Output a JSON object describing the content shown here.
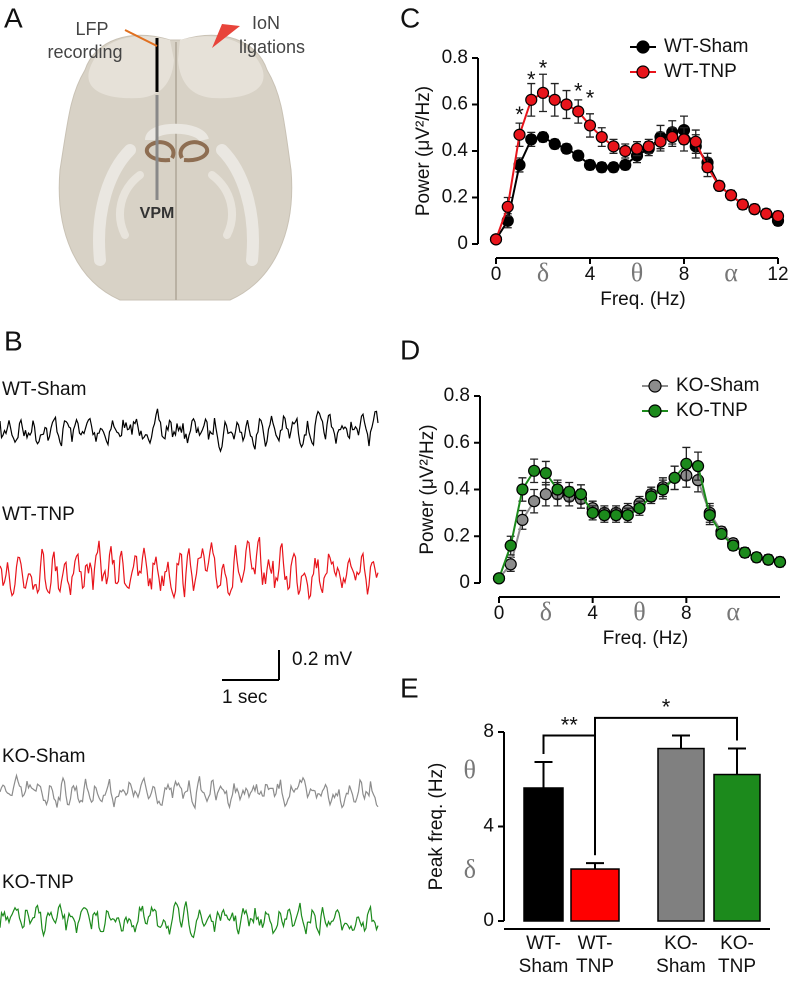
{
  "panel_labels": [
    "A",
    "B",
    "C",
    "D",
    "E"
  ],
  "panel_a": {
    "recording_label": [
      "LFP",
      "recording"
    ],
    "ligation_label": [
      "IoN",
      "ligations"
    ],
    "region_label": "VPM"
  },
  "panel_b": {
    "traces": [
      {
        "name": "WT-Sham",
        "color": "#000000"
      },
      {
        "name": "WT-TNP",
        "color": "#e8141b"
      },
      {
        "name": "KO-Sham",
        "color": "#8c8c8c"
      },
      {
        "name": "KO-TNP",
        "color": "#1c8a1c"
      }
    ],
    "scale_bar": {
      "amplitude": "0.2 mV",
      "time": "1 sec"
    }
  },
  "chart_data": [
    {
      "type": "line",
      "xlabel": "Freq. (Hz)",
      "ylabel": "Power (μV²/Hz)",
      "x": [
        0,
        0.5,
        1,
        1.5,
        2,
        2.5,
        3,
        3.5,
        4,
        4.5,
        5,
        5.5,
        6,
        6.5,
        7,
        7.5,
        8,
        8.5,
        9,
        9.5,
        10,
        10.5,
        11,
        11.5,
        12
      ],
      "series": [
        {
          "name": "WT-Sham",
          "color": "#000000",
          "values": [
            0.02,
            0.1,
            0.34,
            0.45,
            0.46,
            0.43,
            0.41,
            0.38,
            0.34,
            0.33,
            0.33,
            0.34,
            0.38,
            0.41,
            0.46,
            0.48,
            0.49,
            0.42,
            0.35,
            0.25,
            0.21,
            0.17,
            0.15,
            0.13,
            0.1
          ],
          "errors": [
            0.01,
            0.03,
            0.03,
            0.03,
            0.02,
            0.02,
            0.02,
            0.02,
            0.02,
            0.02,
            0.02,
            0.02,
            0.03,
            0.03,
            0.05,
            0.05,
            0.06,
            0.05,
            0.04,
            0.02,
            0.02,
            0.02,
            0.02,
            0.02,
            0.02
          ]
        },
        {
          "name": "WT-TNP",
          "color": "#e8141b",
          "values": [
            0.02,
            0.16,
            0.47,
            0.62,
            0.65,
            0.62,
            0.6,
            0.57,
            0.51,
            0.46,
            0.42,
            0.4,
            0.41,
            0.42,
            0.44,
            0.46,
            0.45,
            0.44,
            0.33,
            0.25,
            0.21,
            0.17,
            0.15,
            0.13,
            0.12
          ],
          "errors": [
            0.01,
            0.04,
            0.05,
            0.07,
            0.08,
            0.07,
            0.06,
            0.05,
            0.05,
            0.04,
            0.03,
            0.03,
            0.03,
            0.03,
            0.04,
            0.04,
            0.05,
            0.05,
            0.04,
            0.02,
            0.02,
            0.02,
            0.02,
            0.02,
            0.02
          ]
        }
      ],
      "xlim": [
        0,
        12
      ],
      "xticks": [
        0,
        4,
        8,
        12
      ],
      "ylim": [
        0,
        0.8
      ],
      "yticks": [
        0,
        0.2,
        0.4,
        0.6,
        0.8
      ],
      "legend": "upper right",
      "band_labels": [
        {
          "text": "δ",
          "x": 2
        },
        {
          "text": "θ",
          "x": 6
        },
        {
          "text": "α",
          "x": 10
        }
      ],
      "annotations": [
        {
          "text": "*",
          "x": 1,
          "y": 0.55
        },
        {
          "text": "*",
          "x": 1.5,
          "y": 0.7
        },
        {
          "text": "*",
          "x": 2,
          "y": 0.75
        },
        {
          "text": "*",
          "x": 3.5,
          "y": 0.65
        },
        {
          "text": "*",
          "x": 4,
          "y": 0.62
        }
      ]
    },
    {
      "type": "line",
      "xlabel": "Freq. (Hz)",
      "ylabel": "Power (μV²/Hz)",
      "x": [
        0,
        0.5,
        1,
        1.5,
        2,
        2.5,
        3,
        3.5,
        4,
        4.5,
        5,
        5.5,
        6,
        6.5,
        7,
        7.5,
        8,
        8.5,
        9,
        9.5,
        10,
        10.5,
        11,
        11.5,
        12
      ],
      "series": [
        {
          "name": "KO-Sham",
          "color": "#8c8c8c",
          "values": [
            0.02,
            0.08,
            0.27,
            0.35,
            0.38,
            0.38,
            0.37,
            0.36,
            0.32,
            0.3,
            0.3,
            0.31,
            0.34,
            0.38,
            0.41,
            0.45,
            0.46,
            0.44,
            0.3,
            0.22,
            0.17,
            0.13,
            0.11,
            0.1,
            0.09
          ],
          "errors": [
            0.01,
            0.03,
            0.04,
            0.05,
            0.05,
            0.05,
            0.04,
            0.04,
            0.03,
            0.03,
            0.03,
            0.03,
            0.03,
            0.03,
            0.04,
            0.05,
            0.05,
            0.05,
            0.04,
            0.02,
            0.02,
            0.02,
            0.02,
            0.02,
            0.02
          ]
        },
        {
          "name": "KO-TNP",
          "color": "#1c8a1c",
          "values": [
            0.02,
            0.16,
            0.4,
            0.48,
            0.47,
            0.4,
            0.39,
            0.38,
            0.3,
            0.29,
            0.29,
            0.29,
            0.32,
            0.37,
            0.4,
            0.45,
            0.51,
            0.5,
            0.29,
            0.21,
            0.16,
            0.13,
            0.11,
            0.1,
            0.09
          ],
          "errors": [
            0.01,
            0.04,
            0.05,
            0.05,
            0.05,
            0.04,
            0.04,
            0.04,
            0.03,
            0.03,
            0.03,
            0.03,
            0.03,
            0.03,
            0.04,
            0.05,
            0.07,
            0.06,
            0.04,
            0.02,
            0.02,
            0.02,
            0.02,
            0.02,
            0.02
          ]
        }
      ],
      "xlim": [
        0,
        12
      ],
      "xticks": [
        0,
        4,
        8
      ],
      "ylim": [
        0,
        0.8
      ],
      "yticks": [
        0,
        0.2,
        0.4,
        0.6,
        0.8
      ],
      "legend": "upper right",
      "band_labels": [
        {
          "text": "δ",
          "x": 2
        },
        {
          "text": "θ",
          "x": 6
        },
        {
          "text": "α",
          "x": 10
        }
      ]
    },
    {
      "type": "bar",
      "ylabel": "Peak freq. (Hz)",
      "categories": [
        [
          "WT-",
          "Sham"
        ],
        [
          "WT-",
          "TNP"
        ],
        [
          "KO-",
          "Sham"
        ],
        [
          "KO-",
          "TNP"
        ]
      ],
      "values": [
        5.63,
        2.2,
        7.3,
        6.2
      ],
      "errors": [
        1.1,
        0.25,
        0.55,
        1.1
      ],
      "colors": [
        "#000000",
        "#ff0000",
        "#808080",
        "#1c8a1c"
      ],
      "ylim": [
        0,
        8
      ],
      "yticks": [
        0,
        4,
        8
      ],
      "band_labels": [
        {
          "text": "θ",
          "y": 6.3
        },
        {
          "text": "δ",
          "y": 2.1
        }
      ],
      "significance": [
        {
          "text": "**",
          "from": 0,
          "to": 1,
          "y": 7.85
        },
        {
          "text": "*",
          "from": 1,
          "to": 3,
          "y": 8.6
        }
      ]
    }
  ]
}
